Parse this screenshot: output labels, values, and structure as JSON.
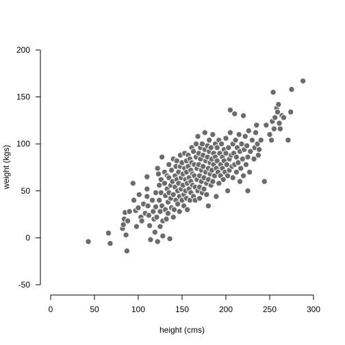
{
  "chart_data": {
    "type": "scatter",
    "title": "",
    "xlabel": "height (cms)",
    "ylabel": "weight (kgs)",
    "xlim": [
      0,
      300
    ],
    "ylim": [
      -50,
      200
    ],
    "xticks": [
      "0",
      "50",
      "100",
      "150",
      "200",
      "250",
      "300"
    ],
    "yticks": [
      "-50",
      "0",
      "50",
      "100",
      "150",
      "200"
    ],
    "grid": false,
    "legend": "none",
    "point_color": "#6b6b6b",
    "point_stroke": "#ffffff",
    "series": [
      {
        "values": [
          [
            43,
            -4
          ],
          [
            66,
            5
          ],
          [
            68,
            -6
          ],
          [
            87,
            -14
          ],
          [
            82,
            10
          ],
          [
            84,
            20
          ],
          [
            85,
            27
          ],
          [
            88,
            18
          ],
          [
            90,
            28
          ],
          [
            83,
            14
          ],
          [
            86,
            3
          ],
          [
            94,
            58
          ],
          [
            95,
            40
          ],
          [
            97,
            29
          ],
          [
            98,
            12
          ],
          [
            100,
            32
          ],
          [
            101,
            46
          ],
          [
            103,
            22
          ],
          [
            104,
            18
          ],
          [
            106,
            36
          ],
          [
            108,
            26
          ],
          [
            110,
            65
          ],
          [
            110,
            52
          ],
          [
            110,
            44
          ],
          [
            111,
            34
          ],
          [
            112,
            24
          ],
          [
            113,
            13
          ],
          [
            114,
            -2
          ],
          [
            116,
            40
          ],
          [
            117,
            28
          ],
          [
            118,
            20
          ],
          [
            119,
            6
          ],
          [
            120,
            48
          ],
          [
            120,
            33
          ],
          [
            121,
            22
          ],
          [
            122,
            -4
          ],
          [
            122,
            74
          ],
          [
            123,
            68
          ],
          [
            124,
            56
          ],
          [
            124,
            40
          ],
          [
            125,
            28
          ],
          [
            125,
            12
          ],
          [
            126,
            62
          ],
          [
            126,
            48
          ],
          [
            127,
            86
          ],
          [
            127,
            34
          ],
          [
            128,
            18
          ],
          [
            128,
            2
          ],
          [
            130,
            70
          ],
          [
            130,
            58
          ],
          [
            131,
            45
          ],
          [
            131,
            30
          ],
          [
            132,
            20
          ],
          [
            133,
            66
          ],
          [
            133,
            52
          ],
          [
            134,
            38
          ],
          [
            134,
            26
          ],
          [
            135,
            78
          ],
          [
            135,
            64
          ],
          [
            135,
            48
          ],
          [
            136,
            -1
          ],
          [
            137,
            56
          ],
          [
            137,
            42
          ],
          [
            138,
            32
          ],
          [
            138,
            72
          ],
          [
            139,
            60
          ],
          [
            140,
            84
          ],
          [
            140,
            46
          ],
          [
            140,
            22
          ],
          [
            141,
            30
          ],
          [
            142,
            66
          ],
          [
            142,
            54
          ],
          [
            143,
            40
          ],
          [
            143,
            76
          ],
          [
            144,
            82
          ],
          [
            144,
            62
          ],
          [
            145,
            50
          ],
          [
            145,
            36
          ],
          [
            146,
            70
          ],
          [
            146,
            58
          ],
          [
            147,
            44
          ],
          [
            147,
            28
          ],
          [
            148,
            88
          ],
          [
            148,
            76
          ],
          [
            149,
            64
          ],
          [
            149,
            52
          ],
          [
            150,
            40
          ],
          [
            150,
            80
          ],
          [
            151,
            68
          ],
          [
            151,
            56
          ],
          [
            152,
            46
          ],
          [
            152,
            34
          ],
          [
            153,
            90
          ],
          [
            153,
            74
          ],
          [
            154,
            62
          ],
          [
            154,
            50
          ],
          [
            155,
            82
          ],
          [
            155,
            70
          ],
          [
            155,
            42
          ],
          [
            156,
            58
          ],
          [
            156,
            30
          ],
          [
            157,
            88
          ],
          [
            157,
            76
          ],
          [
            158,
            64
          ],
          [
            158,
            52
          ],
          [
            159,
            40
          ],
          [
            159,
            84
          ],
          [
            160,
            72
          ],
          [
            160,
            60
          ],
          [
            160,
            48
          ],
          [
            161,
            96
          ],
          [
            161,
            80
          ],
          [
            162,
            68
          ],
          [
            162,
            56
          ],
          [
            163,
            44
          ],
          [
            163,
            92
          ],
          [
            164,
            78
          ],
          [
            164,
            66
          ],
          [
            165,
            54
          ],
          [
            165,
            40
          ],
          [
            166,
            100
          ],
          [
            166,
            86
          ],
          [
            167,
            74
          ],
          [
            167,
            62
          ],
          [
            168,
            50
          ],
          [
            168,
            108
          ],
          [
            169,
            90
          ],
          [
            169,
            78
          ],
          [
            170,
            66
          ],
          [
            170,
            54
          ],
          [
            170,
            42
          ],
          [
            171,
            96
          ],
          [
            171,
            84
          ],
          [
            172,
            72
          ],
          [
            172,
            60
          ],
          [
            173,
            48
          ],
          [
            173,
            100
          ],
          [
            174,
            88
          ],
          [
            174,
            76
          ],
          [
            175,
            64
          ],
          [
            175,
            52
          ],
          [
            176,
            112
          ],
          [
            176,
            94
          ],
          [
            177,
            82
          ],
          [
            177,
            70
          ],
          [
            178,
            58
          ],
          [
            178,
            46
          ],
          [
            179,
            98
          ],
          [
            179,
            86
          ],
          [
            180,
            74
          ],
          [
            180,
            62
          ],
          [
            180,
            34
          ],
          [
            181,
            104
          ],
          [
            181,
            92
          ],
          [
            182,
            80
          ],
          [
            182,
            68
          ],
          [
            183,
            56
          ],
          [
            183,
            96
          ],
          [
            184,
            84
          ],
          [
            184,
            72
          ],
          [
            185,
            60
          ],
          [
            185,
            110
          ],
          [
            186,
            90
          ],
          [
            186,
            78
          ],
          [
            187,
            66
          ],
          [
            188,
            100
          ],
          [
            188,
            86
          ],
          [
            189,
            74
          ],
          [
            189,
            44
          ],
          [
            190,
            96
          ],
          [
            190,
            82
          ],
          [
            191,
            70
          ],
          [
            192,
            104
          ],
          [
            192,
            58
          ],
          [
            193,
            90
          ],
          [
            194,
            78
          ],
          [
            194,
            66
          ],
          [
            195,
            100
          ],
          [
            196,
            86
          ],
          [
            196,
            74
          ],
          [
            197,
            62
          ],
          [
            198,
            94
          ],
          [
            198,
            82
          ],
          [
            199,
            70
          ],
          [
            200,
            106
          ],
          [
            200,
            90
          ],
          [
            201,
            78
          ],
          [
            202,
            66
          ],
          [
            202,
            50
          ],
          [
            203,
            96
          ],
          [
            204,
            84
          ],
          [
            204,
            72
          ],
          [
            205,
            112
          ],
          [
            205,
            136
          ],
          [
            206,
            88
          ],
          [
            207,
            76
          ],
          [
            208,
            100
          ],
          [
            208,
            64
          ],
          [
            209,
            90
          ],
          [
            210,
            78
          ],
          [
            210,
            132
          ],
          [
            211,
            104
          ],
          [
            212,
            86
          ],
          [
            212,
            70
          ],
          [
            213,
            96
          ],
          [
            214,
            80
          ],
          [
            215,
            110
          ],
          [
            216,
            92
          ],
          [
            216,
            60
          ],
          [
            217,
            74
          ],
          [
            218,
            100
          ],
          [
            219,
            84
          ],
          [
            220,
            66
          ],
          [
            220,
            130
          ],
          [
            221,
            94
          ],
          [
            222,
            108
          ],
          [
            223,
            78
          ],
          [
            224,
            98
          ],
          [
            225,
            86
          ],
          [
            225,
            50
          ],
          [
            226,
            114
          ],
          [
            227,
            70
          ],
          [
            228,
            92
          ],
          [
            230,
            104
          ],
          [
            232,
            84
          ],
          [
            233,
            96
          ],
          [
            234,
            112
          ],
          [
            235,
            120
          ],
          [
            236,
            100
          ],
          [
            237,
            88
          ],
          [
            238,
            94
          ],
          [
            240,
            104
          ],
          [
            244,
            60
          ],
          [
            246,
            120
          ],
          [
            250,
            110
          ],
          [
            252,
            104
          ],
          [
            253,
            124
          ],
          [
            254,
            155
          ],
          [
            255,
            116
          ],
          [
            256,
            128
          ],
          [
            258,
            138
          ],
          [
            259,
            134
          ],
          [
            260,
            142
          ],
          [
            261,
            122
          ],
          [
            262,
            116
          ],
          [
            264,
            130
          ],
          [
            266,
            128
          ],
          [
            271,
            104
          ],
          [
            274,
            134
          ],
          [
            275,
            158
          ],
          [
            288,
            167
          ]
        ]
      }
    ]
  }
}
